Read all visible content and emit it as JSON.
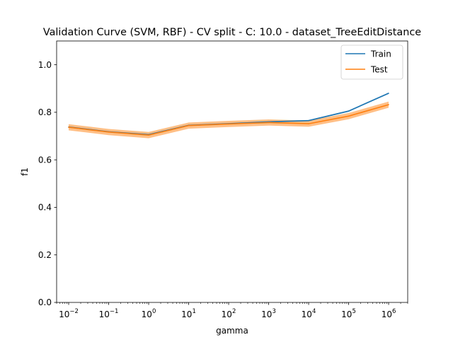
{
  "chart_data": {
    "type": "line",
    "title": "Validation Curve (SVM, RBF) - CV split - C: 10.0 - dataset_TreeEditDistance",
    "xlabel": "gamma",
    "ylabel": "f1",
    "xscale": "log",
    "x": [
      0.01,
      0.1,
      1,
      10,
      100,
      1000,
      10000,
      100000,
      1000000
    ],
    "xlim": [
      0.005,
      3000000
    ],
    "ylim": [
      0.0,
      1.1
    ],
    "xticks": [
      {
        "value": 0.01,
        "base": "10",
        "exp": "−2"
      },
      {
        "value": 0.1,
        "base": "10",
        "exp": "−1"
      },
      {
        "value": 1,
        "base": "10",
        "exp": "0"
      },
      {
        "value": 10,
        "base": "10",
        "exp": "1"
      },
      {
        "value": 100,
        "base": "10",
        "exp": "2"
      },
      {
        "value": 1000,
        "base": "10",
        "exp": "3"
      },
      {
        "value": 10000,
        "base": "10",
        "exp": "4"
      },
      {
        "value": 100000,
        "base": "10",
        "exp": "5"
      },
      {
        "value": 1000000,
        "base": "10",
        "exp": "6"
      }
    ],
    "yticks": [
      {
        "value": 0.0,
        "label": "0.0"
      },
      {
        "value": 0.2,
        "label": "0.2"
      },
      {
        "value": 0.4,
        "label": "0.4"
      },
      {
        "value": 0.6,
        "label": "0.6"
      },
      {
        "value": 0.8,
        "label": "0.8"
      },
      {
        "value": 1.0,
        "label": "1.0"
      }
    ],
    "grid": false,
    "legend_position": "top-right",
    "series": [
      {
        "name": "Train",
        "color": "#1f77b4",
        "values": [
          0.738,
          0.718,
          0.706,
          0.745,
          0.752,
          0.76,
          0.765,
          0.805,
          0.88
        ],
        "band": 0.003
      },
      {
        "name": "Test",
        "color": "#ff7f0e",
        "values": [
          0.737,
          0.717,
          0.704,
          0.744,
          0.751,
          0.757,
          0.752,
          0.784,
          0.832
        ],
        "band": 0.013
      }
    ]
  }
}
